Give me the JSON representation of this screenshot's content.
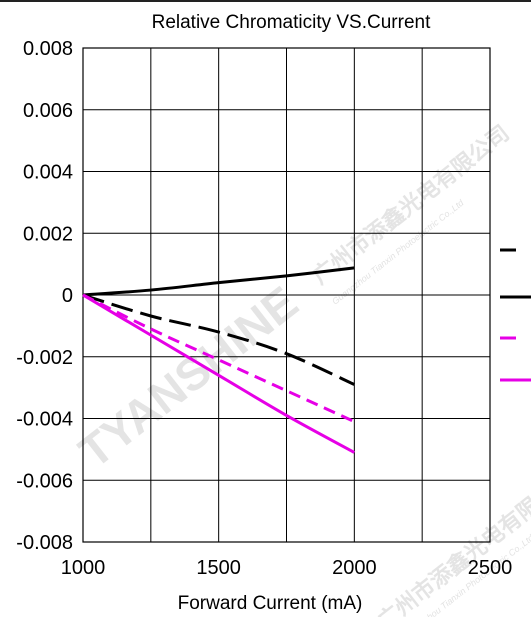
{
  "chart_data": {
    "type": "line",
    "title": "Relative Chromaticity VS.Current",
    "xlabel": "Forward Current (mA)",
    "ylabel": "",
    "xlim": [
      1000,
      2500
    ],
    "ylim": [
      -0.008,
      0.008
    ],
    "x_ticks": [
      1000,
      1500,
      2000,
      2500
    ],
    "x_tick_labels": [
      "1000",
      "1500",
      "2000",
      "2500"
    ],
    "y_ticks": [
      0.008,
      0.006,
      0.004,
      0.002,
      0,
      -0.002,
      -0.004,
      -0.006,
      -0.008
    ],
    "y_tick_labels": [
      "0.008",
      "0.006",
      "0.004",
      "0.002",
      "0",
      "-0.002",
      "-0.004",
      "-0.006",
      "-0.008"
    ],
    "x_grid_step": 250,
    "y_grid_step": 0.002,
    "grid": true,
    "legend_position": "right, partially cropped",
    "series": [
      {
        "color": "#000000",
        "dash": "solid",
        "x": [
          1000,
          1250,
          1500,
          1750,
          2000
        ],
        "y": [
          0,
          0.00016,
          0.0004,
          0.00062,
          0.00088
        ]
      },
      {
        "color": "#000000",
        "dash": "long-dash",
        "x": [
          1000,
          1250,
          1500,
          1750,
          2000
        ],
        "y": [
          0,
          -0.00068,
          -0.0012,
          -0.0019,
          -0.0029
        ]
      },
      {
        "color": "#e600e6",
        "dash": "dash",
        "x": [
          1000,
          1250,
          1500,
          1750,
          2000
        ],
        "y": [
          0,
          -0.0011,
          -0.0021,
          -0.0031,
          -0.0041
        ]
      },
      {
        "color": "#e600e6",
        "dash": "solid",
        "x": [
          1000,
          1250,
          1500,
          1750,
          2000
        ],
        "y": [
          0,
          -0.0013,
          -0.0026,
          -0.0039,
          -0.0051
        ]
      }
    ],
    "legend_order": [
      1,
      0,
      2,
      3
    ]
  },
  "watermark": {
    "brand": "TYANSHINE",
    "company_cn": "广州市添鑫光电有限公司",
    "company_en": "Guangzhou Tianxin Photoelectric Co.,Ltd"
  }
}
